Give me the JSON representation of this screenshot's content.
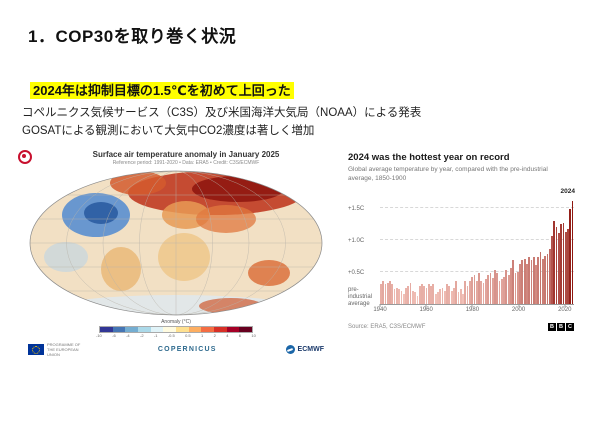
{
  "slide": {
    "title": "1．COP30を取り巻く状況",
    "highlight_line": "2024年は抑制目標の1.5℃を初めて上回った",
    "body_lines": [
      "コペルニクス気候サービス（C3S）及び米国海洋大気局（NOAA）による発表",
      "GOSATによる観測において大気中CO2濃度は著しく増加"
    ]
  },
  "map_figure": {
    "title": "Surface air temperature anomaly in January 2025",
    "subtitle": "Reference period: 1991-2020 • Data: ERA5 • Credit: C3S/ECMWF",
    "colorbar_label": "Anomaly (°C)",
    "colorbar_ticks": [
      "-10",
      "-6",
      "-4",
      "-2",
      "-1",
      "-0.5",
      "0.5",
      "1",
      "2",
      "4",
      "6",
      "10"
    ],
    "colorbar_colors": [
      "#313695",
      "#4575b4",
      "#74add1",
      "#abd9e9",
      "#e0f3f8",
      "#fffbe0",
      "#fee090",
      "#fdae61",
      "#f46d43",
      "#d73027",
      "#a50026",
      "#67001f"
    ],
    "logos": {
      "eu_text": "PROGRAMME OF THE EUROPEAN UNION",
      "copernicus": "COPERNICUS",
      "ecmwf": "ECMWF"
    }
  },
  "chart_data": {
    "type": "bar",
    "title": "2024 was the hottest year on record",
    "subtitle": "Global average temperature by year, compared with the pre-industrial average, 1850-1900",
    "x_start": 1940,
    "x_end": 2024,
    "x_ticks": [
      "1940",
      "1960",
      "1980",
      "2000",
      "2020"
    ],
    "y_gridlines": [
      0.5,
      1.0,
      1.5
    ],
    "y_grid_labels": [
      "+0.5C",
      "+1.0C",
      "+1.5C"
    ],
    "baseline_label": "pre-industrial average",
    "annotation": "2024",
    "ylim": [
      0,
      1.75
    ],
    "values": [
      0.3,
      0.35,
      0.3,
      0.32,
      0.35,
      0.3,
      0.22,
      0.25,
      0.22,
      0.2,
      0.15,
      0.25,
      0.28,
      0.32,
      0.2,
      0.18,
      0.12,
      0.28,
      0.3,
      0.28,
      0.25,
      0.3,
      0.28,
      0.3,
      0.15,
      0.18,
      0.22,
      0.25,
      0.2,
      0.3,
      0.28,
      0.2,
      0.25,
      0.35,
      0.18,
      0.22,
      0.15,
      0.35,
      0.28,
      0.35,
      0.42,
      0.45,
      0.35,
      0.48,
      0.35,
      0.32,
      0.38,
      0.45,
      0.48,
      0.4,
      0.52,
      0.48,
      0.35,
      0.38,
      0.42,
      0.52,
      0.45,
      0.55,
      0.68,
      0.48,
      0.5,
      0.62,
      0.68,
      0.7,
      0.62,
      0.72,
      0.68,
      0.72,
      0.6,
      0.72,
      0.8,
      0.7,
      0.75,
      0.78,
      0.85,
      1.05,
      1.29,
      1.2,
      1.1,
      1.25,
      1.26,
      1.12,
      1.17,
      1.48,
      1.6
    ],
    "bar_color_min": "#f5c6bd",
    "bar_color_max": "#8f1710",
    "source": "Source: ERA5, C3S/ECMWF",
    "logo": "BBC",
    "legend_position": "none",
    "grid": true
  }
}
